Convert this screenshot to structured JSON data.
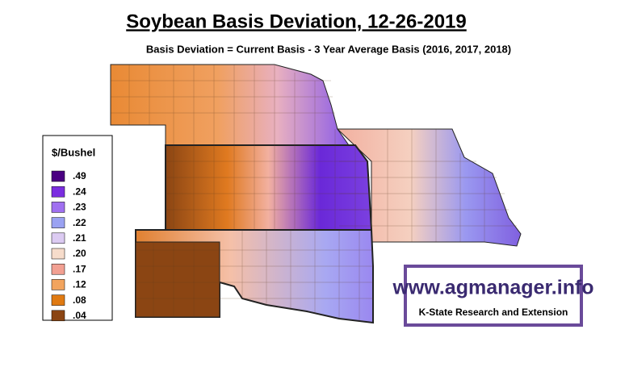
{
  "title": "Soybean Basis Deviation, 12-26-2019",
  "subtitle": "Basis Deviation = Current Basis - 3 Year Average Basis (2016, 2017, 2018)",
  "legend": {
    "title": "$/Bushel",
    "items": [
      {
        "label": ".49",
        "color": "#4b0082"
      },
      {
        "label": ".24",
        "color": "#7b2ee0"
      },
      {
        "label": ".23",
        "color": "#a070f0"
      },
      {
        "label": ".22",
        "color": "#9aa2f2"
      },
      {
        "label": ".21",
        "color": "#dccbf2"
      },
      {
        "label": ".20",
        "color": "#f6dccb"
      },
      {
        "label": ".17",
        "color": "#f2a092"
      },
      {
        "label": ".12",
        "color": "#f2a45e"
      },
      {
        "label": ".08",
        "color": "#e07a12"
      },
      {
        "label": ".04",
        "color": "#8b4513"
      }
    ]
  },
  "logo": {
    "url": "www.agmanager.info",
    "tagline": "K-State Research and Extension"
  }
}
